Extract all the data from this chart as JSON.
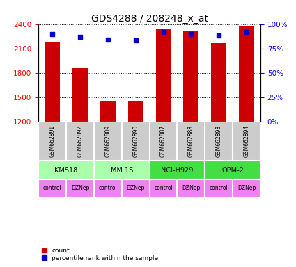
{
  "title": "GDS4288 / 208248_x_at",
  "samples": [
    "GSM662891",
    "GSM662892",
    "GSM662889",
    "GSM662890",
    "GSM662887",
    "GSM662888",
    "GSM662893",
    "GSM662894"
  ],
  "counts": [
    2175,
    1860,
    1460,
    1455,
    2340,
    2310,
    2170,
    2375
  ],
  "percentile_ranks": [
    90,
    87,
    84,
    83,
    92,
    90,
    88,
    92
  ],
  "cell_lines": [
    {
      "name": "KMS18",
      "cols": [
        0,
        1
      ],
      "color": "#aaffaa"
    },
    {
      "name": "MM.1S",
      "cols": [
        2,
        3
      ],
      "color": "#aaffaa"
    },
    {
      "name": "NCI-H929",
      "cols": [
        4,
        5
      ],
      "color": "#44dd44"
    },
    {
      "name": "OPM-2",
      "cols": [
        6,
        7
      ],
      "color": "#44dd44"
    }
  ],
  "agents": [
    "control",
    "DZNep",
    "control",
    "DZNep",
    "control",
    "DZNep",
    "control",
    "DZNep"
  ],
  "agent_color": "#ee82ee",
  "bar_color": "#cc0000",
  "dot_color": "#0000cc",
  "ylim_left": [
    1200,
    2400
  ],
  "ylim_right": [
    0,
    100
  ],
  "yticks_left": [
    1200,
    1500,
    1800,
    2100,
    2400
  ],
  "yticks_right": [
    0,
    25,
    50,
    75,
    100
  ],
  "ytick_labels_right": [
    "0%",
    "25%",
    "50%",
    "75%",
    "100%"
  ],
  "bg_color": "#ffffff",
  "gsm_bg": "#cccccc",
  "bar_width": 0.55
}
